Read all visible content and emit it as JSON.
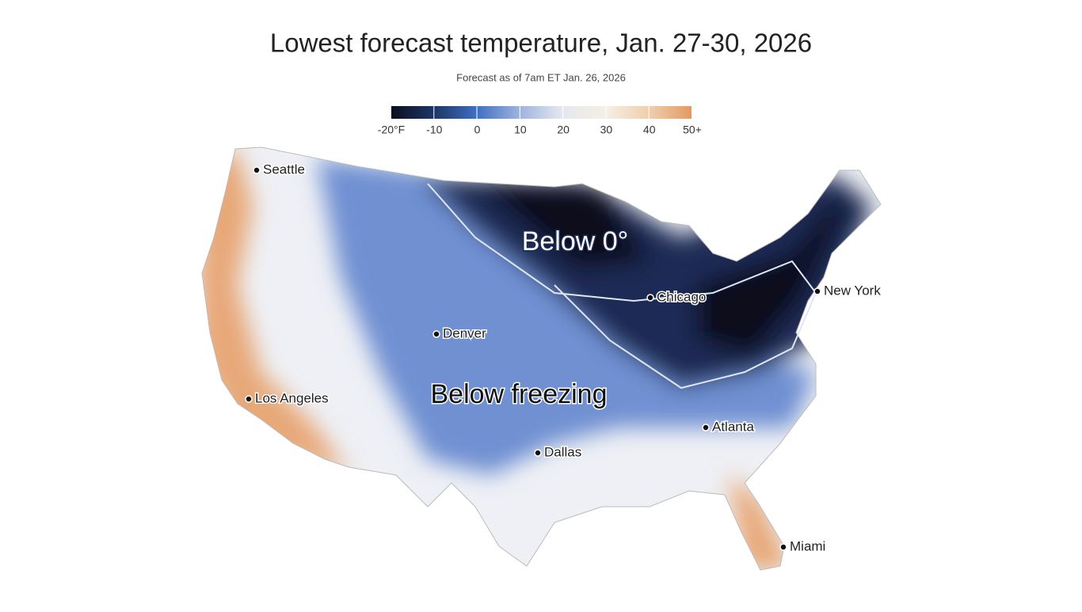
{
  "header": {
    "title": "Lowest forecast temperature, Jan. 27-30, 2026",
    "subtitle": "Forecast as of 7am ET Jan. 26, 2026"
  },
  "legend": {
    "labels": [
      "-20°F",
      "-10",
      "0",
      "10",
      "20",
      "30",
      "40",
      "50+"
    ],
    "colors": [
      "#0b0f1f",
      "#1d3566",
      "#3f6fc4",
      "#9fb4de",
      "#e6e8ef",
      "#f5efe4",
      "#f0cfae",
      "#e39a60"
    ]
  },
  "map": {
    "regions": [
      "Below 0°",
      "Below freezing"
    ],
    "cities": [
      "Seattle",
      "Denver",
      "Chicago",
      "New York",
      "Los Angeles",
      "Atlanta",
      "Dallas",
      "Miami"
    ]
  }
}
